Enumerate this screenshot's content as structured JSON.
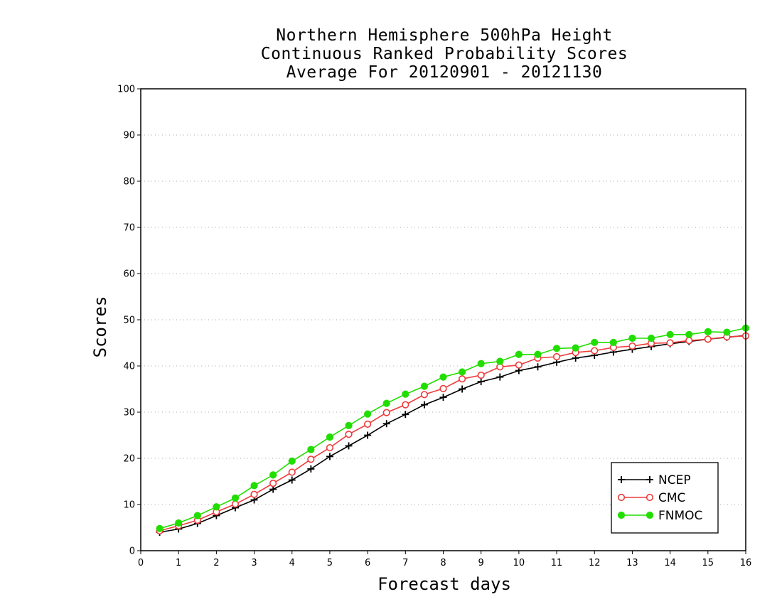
{
  "chart_data": {
    "type": "line",
    "title_lines": [
      "Northern Hemisphere 500hPa Height",
      "Continuous Ranked Probability Scores",
      "Average For 20120901 - 20121130"
    ],
    "xlabel": "Forecast days",
    "ylabel": "Scores",
    "xlim": [
      0,
      16
    ],
    "ylim": [
      0,
      100
    ],
    "x_ticks": [
      "0",
      "1",
      "2",
      "3",
      "4",
      "5",
      "6",
      "7",
      "8",
      "9",
      "10",
      "11",
      "12",
      "13",
      "14",
      "15",
      "16"
    ],
    "y_ticks": [
      "0",
      "10",
      "20",
      "30",
      "40",
      "50",
      "60",
      "70",
      "80",
      "90",
      "100"
    ],
    "grid": "horizontal dotted",
    "legend_position": "bottom-right",
    "x": [
      0.5,
      1,
      1.5,
      2,
      2.5,
      3,
      3.5,
      4,
      4.5,
      5,
      5.5,
      6,
      6.5,
      7,
      7.5,
      8,
      8.5,
      9,
      9.5,
      10,
      10.5,
      11,
      11.5,
      12,
      12.5,
      13,
      13.5,
      14,
      14.5,
      15,
      15.5,
      16
    ],
    "series": [
      {
        "name": "NCEP",
        "color": "#000000",
        "marker": "plus",
        "values": [
          4.0,
          4.7,
          5.9,
          7.6,
          9.3,
          11.0,
          13.3,
          15.3,
          17.7,
          20.4,
          22.7,
          25.0,
          27.5,
          29.5,
          31.6,
          33.2,
          35.0,
          36.6,
          37.6,
          39.0,
          39.8,
          40.8,
          41.7,
          42.3,
          43.0,
          43.6,
          44.2,
          44.8,
          45.3,
          45.8,
          46.2,
          46.6
        ]
      },
      {
        "name": "CMC",
        "color": "#ee3b3b",
        "marker": "open-circle",
        "values": [
          4.3,
          5.4,
          6.6,
          8.4,
          10.1,
          12.2,
          14.6,
          17.0,
          19.8,
          22.3,
          25.2,
          27.4,
          29.9,
          31.6,
          33.8,
          35.1,
          37.2,
          38.0,
          39.8,
          40.2,
          41.7,
          42.0,
          42.9,
          43.3,
          44.0,
          44.3,
          44.9,
          45.0,
          45.5,
          45.8,
          46.3,
          46.5
        ]
      },
      {
        "name": "FNMOC",
        "color": "#22dd00",
        "marker": "filled-circle",
        "values": [
          4.8,
          6.0,
          7.6,
          9.5,
          11.4,
          14.1,
          16.4,
          19.4,
          21.9,
          24.6,
          27.1,
          29.6,
          31.9,
          33.9,
          35.6,
          37.6,
          38.7,
          40.5,
          41.0,
          42.5,
          42.5,
          43.8,
          43.9,
          45.1,
          45.1,
          46.0,
          46.0,
          46.8,
          46.8,
          47.4,
          47.3,
          48.2
        ]
      }
    ]
  }
}
